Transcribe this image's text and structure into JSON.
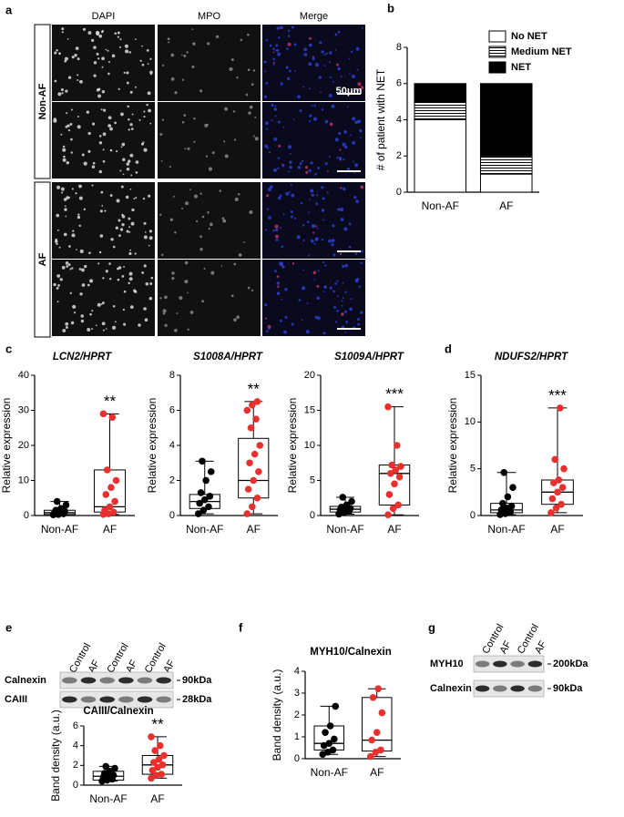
{
  "figure": {
    "panel_a": {
      "letter": "a",
      "columns": [
        "DAPI",
        "MPO",
        "Merge"
      ],
      "rows": [
        "Non-AF",
        "AF"
      ],
      "scale_bar": "50μm"
    },
    "panel_e_blot": {
      "letter": "e",
      "lanes": [
        "Control",
        "AF",
        "Control",
        "AF",
        "Control",
        "AF"
      ],
      "rows": [
        {
          "protein": "Calnexin",
          "size": "90kDa"
        },
        {
          "protein": "CAIII",
          "size": "28kDa"
        }
      ]
    },
    "panel_g_blot": {
      "letter": "g",
      "lanes": [
        "Control",
        "AF",
        "Control",
        "AF"
      ],
      "rows": [
        {
          "protein": "MYH10",
          "size": "200kDa"
        },
        {
          "protein": "Calnexin",
          "size": "90kDa"
        }
      ]
    }
  },
  "chart_data": [
    {
      "type": "stacked_bar",
      "panel": "b",
      "ylabel": "# of patient with NET",
      "categories": [
        "Non-AF",
        "AF"
      ],
      "series": [
        {
          "name": "No NET",
          "color": "#ffffff",
          "values": [
            4,
            1
          ]
        },
        {
          "name": "Medium NET",
          "color": "#ffffff",
          "hatch": "horizontal",
          "values": [
            1,
            1
          ]
        },
        {
          "name": "NET",
          "color": "#000000",
          "values": [
            1,
            4
          ]
        }
      ],
      "ylim": [
        0,
        8
      ],
      "yticks": [
        0,
        2,
        4,
        6,
        8
      ],
      "legend": "top-right"
    },
    {
      "type": "box",
      "panel": "c",
      "title": "LCN2/HPRT",
      "ylabel": "Relative expression",
      "categories": [
        "Non-AF",
        "AF"
      ],
      "boxes": [
        {
          "color": "#000000",
          "min": 0.2,
          "q1": 0.3,
          "median": 0.8,
          "q3": 1.5,
          "max": 4,
          "points": [
            0.2,
            0.3,
            0.5,
            0.8,
            1,
            1.2,
            1.5,
            2,
            3,
            4
          ]
        },
        {
          "color": "#e8312f",
          "min": 0.3,
          "q1": 1,
          "median": 2.5,
          "q3": 13,
          "max": 29,
          "points": [
            0.3,
            0.5,
            1,
            1.5,
            2.5,
            4,
            6,
            8,
            10,
            13,
            28,
            29
          ]
        }
      ],
      "annotations": [
        null,
        "**"
      ],
      "ylim": [
        0,
        40
      ],
      "yticks": [
        0,
        10,
        20,
        30,
        40
      ]
    },
    {
      "type": "box",
      "title": "S1008A/HPRT",
      "ylabel": "Relative expression",
      "categories": [
        "Non-AF",
        "AF"
      ],
      "boxes": [
        {
          "color": "#000000",
          "min": 0.1,
          "q1": 0.4,
          "median": 0.8,
          "q3": 1.2,
          "max": 3.1,
          "points": [
            0.1,
            0.3,
            0.5,
            0.7,
            0.9,
            1.1,
            1.3,
            2,
            2.5,
            3.1
          ]
        },
        {
          "color": "#e8312f",
          "min": 0.1,
          "q1": 1,
          "median": 2,
          "q3": 4.4,
          "max": 6.5,
          "points": [
            0.1,
            0.5,
            1,
            1.5,
            2,
            2.5,
            3,
            3.5,
            4,
            5,
            5.5,
            6,
            6.3,
            6.5
          ]
        }
      ],
      "annotations": [
        null,
        "**"
      ],
      "ylim": [
        0,
        8
      ],
      "yticks": [
        0,
        2,
        4,
        6,
        8
      ]
    },
    {
      "type": "box",
      "title": "S1009A/HPRT",
      "ylabel": "Relative expression",
      "categories": [
        "Non-AF",
        "AF"
      ],
      "boxes": [
        {
          "color": "#000000",
          "min": 0.2,
          "q1": 0.5,
          "median": 0.9,
          "q3": 1.3,
          "max": 2.6,
          "points": [
            0.2,
            0.4,
            0.6,
            0.8,
            0.9,
            1,
            1.2,
            1.5,
            2,
            2.6
          ]
        },
        {
          "color": "#e8312f",
          "min": 0.1,
          "q1": 1.5,
          "median": 6,
          "q3": 7.2,
          "max": 15.5,
          "points": [
            0.1,
            1,
            1.5,
            3,
            4.5,
            5.5,
            6,
            6.5,
            7,
            7.2,
            10,
            15.5
          ]
        }
      ],
      "annotations": [
        null,
        "***"
      ],
      "ylim": [
        0,
        20
      ],
      "yticks": [
        0,
        5,
        10,
        15,
        20
      ]
    },
    {
      "type": "box",
      "panel": "d",
      "title": "NDUFS2/HPRT",
      "ylabel": "Relative expression",
      "categories": [
        "Non-AF",
        "AF"
      ],
      "boxes": [
        {
          "color": "#000000",
          "min": 0.1,
          "q1": 0.3,
          "median": 0.6,
          "q3": 1.3,
          "max": 4.6,
          "points": [
            0.1,
            0.2,
            0.4,
            0.6,
            0.8,
            1,
            1.3,
            2,
            3,
            4.6
          ]
        },
        {
          "color": "#e8312f",
          "min": 0.3,
          "q1": 1.2,
          "median": 2.5,
          "q3": 3.8,
          "max": 11.5,
          "points": [
            0.3,
            0.8,
            1.2,
            1.8,
            2.5,
            3,
            3.5,
            3.8,
            5,
            6,
            11.5
          ]
        }
      ],
      "annotations": [
        null,
        "***"
      ],
      "ylim": [
        0,
        15
      ],
      "yticks": [
        0,
        5,
        10,
        15
      ]
    },
    {
      "type": "box",
      "title": "CAIII/Calnexin",
      "ylabel": "Band density (a.u.)",
      "categories": [
        "Non-AF",
        "AF"
      ],
      "boxes": [
        {
          "color": "#000000",
          "min": 0.4,
          "q1": 0.5,
          "median": 0.9,
          "q3": 1.4,
          "max": 1.9,
          "points": [
            0.4,
            0.5,
            0.6,
            0.8,
            0.9,
            1,
            1.2,
            1.4,
            1.7,
            1.9
          ]
        },
        {
          "color": "#e8312f",
          "min": 0.7,
          "q1": 1.1,
          "median": 2.05,
          "q3": 3,
          "max": 4.9,
          "points": [
            0.7,
            1,
            1.1,
            1.5,
            1.8,
            2.05,
            2.3,
            2.6,
            3,
            3.5,
            4,
            4.9
          ]
        }
      ],
      "annotations": [
        null,
        "**"
      ],
      "ylim": [
        0,
        6
      ],
      "yticks": [
        0,
        2,
        4,
        6
      ]
    },
    {
      "type": "box",
      "panel": "f",
      "title": "MYH10/Calnexin",
      "ylabel": "Band density (a.u.)",
      "categories": [
        "Non-AF",
        "AF"
      ],
      "boxes": [
        {
          "color": "#000000",
          "min": 0.2,
          "q1": 0.4,
          "median": 0.7,
          "q3": 1.5,
          "max": 2.4,
          "points": [
            0.2,
            0.3,
            0.4,
            0.6,
            0.7,
            0.9,
            1.2,
            1.5,
            2.4
          ]
        },
        {
          "color": "#e8312f",
          "min": 0.1,
          "q1": 0.35,
          "median": 0.85,
          "q3": 2.8,
          "max": 3.2,
          "points": [
            0.1,
            0.3,
            0.4,
            0.85,
            1.2,
            2.1,
            2.8,
            3.2
          ]
        }
      ],
      "annotations": [
        null,
        null
      ],
      "ylim": [
        0,
        4
      ],
      "yticks": [
        0,
        1,
        2,
        3,
        4
      ]
    }
  ]
}
